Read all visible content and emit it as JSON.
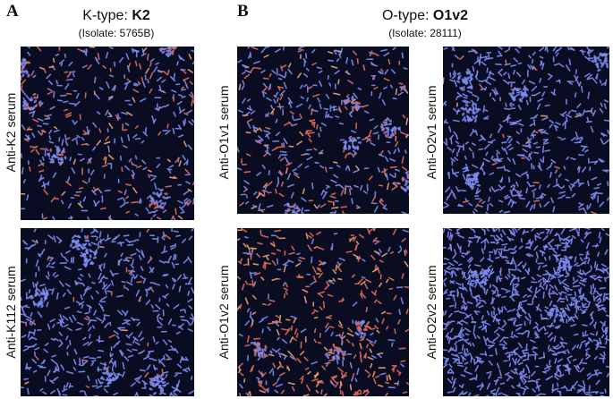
{
  "panels": {
    "A": {
      "letter": "A",
      "title_prefix": "K-type: ",
      "title_value": "K2",
      "isolate": "(Isolate: 5765B)",
      "images": [
        {
          "label": "Anti-K2 serum",
          "stain": "mixed",
          "seed": 11
        },
        {
          "label": "Anti-K112 serum",
          "stain": "blue",
          "seed": 23
        }
      ]
    },
    "B": {
      "letter": "B",
      "title_prefix": "O-type: ",
      "title_value": "O1v2",
      "isolate": "(Isolate: 28111)",
      "images": [
        {
          "label": "Anti-O1v1 serum",
          "stain": "mixed",
          "seed": 37
        },
        {
          "label": "Anti-O2v1 serum",
          "stain": "blue",
          "seed": 41
        },
        {
          "label": "Anti-O1v2 serum",
          "stain": "red",
          "seed": 53
        },
        {
          "label": "Anti-O2v2 serum",
          "stain": "denseblue",
          "seed": 67
        }
      ]
    }
  },
  "colors": {
    "background": "#0a0c22",
    "blue_cell": "#7c8cf0",
    "red_cell": "#e06a5a",
    "orange_cell": "#f0a070"
  }
}
